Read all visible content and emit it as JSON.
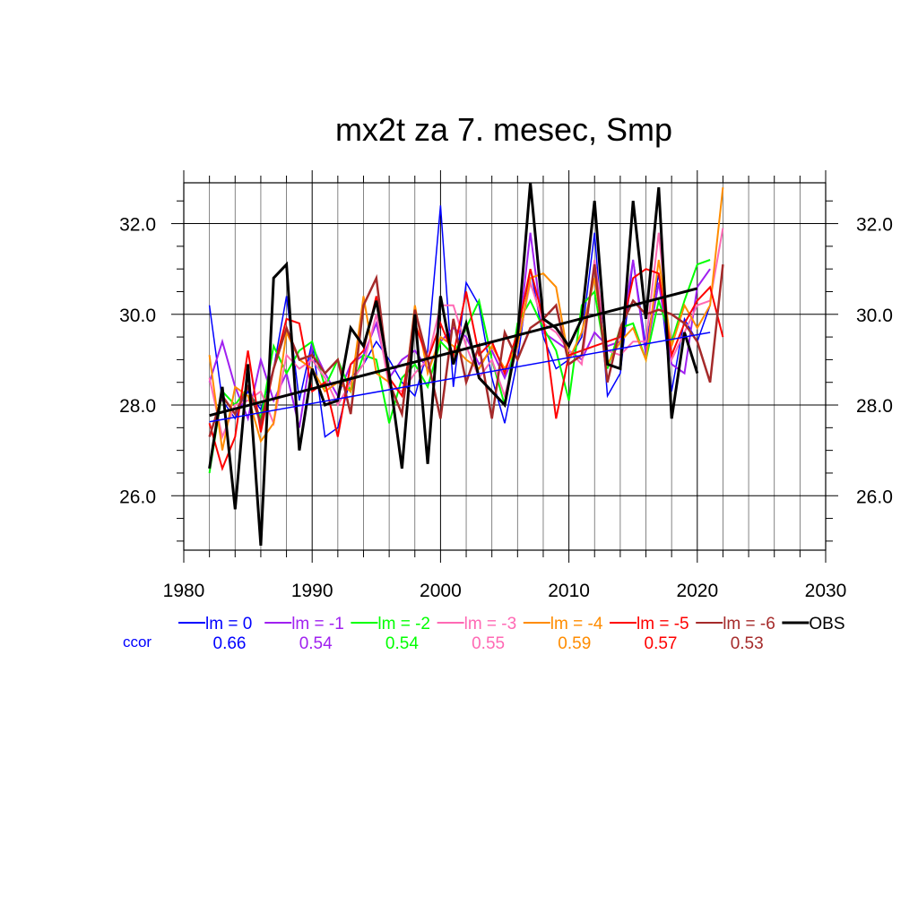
{
  "chart_data": {
    "type": "line",
    "title": "mx2t za 7. mesec, Smp",
    "xlabel": "",
    "ylabel": "",
    "xlim": [
      1980,
      2030
    ],
    "ylim": [
      24.8,
      32.9
    ],
    "x_ticks": [
      1980,
      1990,
      2000,
      2010,
      2020,
      2030
    ],
    "y_ticks": [
      26.0,
      28.0,
      30.0,
      32.0
    ],
    "y_tick_labels": [
      "26.0",
      "28.0",
      "30.0",
      "32.0"
    ],
    "grid": true,
    "legend_position": "below",
    "ccor_label": "ccor",
    "colors": {
      "lm0": "#0000ff",
      "lm1": "#a020f0",
      "lm2": "#00ff00",
      "lm3": "#ff69b4",
      "lm4": "#ff8c00",
      "lm5": "#ff0000",
      "lm6": "#a52a2a",
      "obs": "#000000",
      "ccor": "#0000ff"
    },
    "series": [
      {
        "key": "lm0",
        "name": "lm = 0",
        "ccor": "0.66",
        "color": "#0000ff",
        "width": 1.5,
        "years": [
          1982,
          1983,
          1984,
          1985,
          1986,
          1987,
          1988,
          1989,
          1990,
          1991,
          1992,
          1993,
          1994,
          1995,
          1996,
          1997,
          1998,
          1999,
          2000,
          2001,
          2002,
          2003,
          2004,
          2005,
          2006,
          2007,
          2008,
          2009,
          2010,
          2011,
          2012,
          2013,
          2014,
          2015,
          2016,
          2017,
          2018,
          2019,
          2020,
          2021
        ],
        "values": [
          30.2,
          28.1,
          27.7,
          28.3,
          27.9,
          28.8,
          30.4,
          28.1,
          29.4,
          27.3,
          27.5,
          28.6,
          28.9,
          29.4,
          29.0,
          28.5,
          28.2,
          29.2,
          32.4,
          28.4,
          30.7,
          30.2,
          28.6,
          27.6,
          29.0,
          31.0,
          29.5,
          28.8,
          29.0,
          29.5,
          31.8,
          28.2,
          28.7,
          31.2,
          29.3,
          30.9,
          28.3,
          29.9,
          29.4,
          30.2
        ],
        "trend": [
          27.63,
          29.6
        ]
      },
      {
        "key": "lm1",
        "name": "lm = -1",
        "ccor": "0.54",
        "color": "#a020f0",
        "width": 2,
        "years": [
          1982,
          1983,
          1984,
          1985,
          1986,
          1987,
          1988,
          1989,
          1990,
          1991,
          1992,
          1993,
          1994,
          1995,
          1996,
          1997,
          1998,
          1999,
          2000,
          2001,
          2002,
          2003,
          2004,
          2005,
          2006,
          2007,
          2008,
          2009,
          2010,
          2011,
          2012,
          2013,
          2014,
          2015,
          2016,
          2017,
          2018,
          2019,
          2020,
          2021
        ],
        "values": [
          28.5,
          29.4,
          28.4,
          27.7,
          29.0,
          28.1,
          28.7,
          27.5,
          29.3,
          28.7,
          28.2,
          28.9,
          29.1,
          29.8,
          28.6,
          29.0,
          29.2,
          28.8,
          29.4,
          29.7,
          29.5,
          28.9,
          29.2,
          28.6,
          29.3,
          31.8,
          29.6,
          29.4,
          29.2,
          29.0,
          29.6,
          29.3,
          29.4,
          31.2,
          29.1,
          30.7,
          28.9,
          28.7,
          30.6,
          31.0
        ]
      },
      {
        "key": "lm2",
        "name": "lm = -2",
        "ccor": "0.54",
        "color": "#00ff00",
        "width": 2,
        "years": [
          1982,
          1983,
          1984,
          1985,
          1986,
          1987,
          1988,
          1989,
          1990,
          1991,
          1992,
          1993,
          1994,
          1995,
          1996,
          1997,
          1998,
          1999,
          2000,
          2001,
          2002,
          2003,
          2004,
          2005,
          2006,
          2007,
          2008,
          2009,
          2010,
          2011,
          2012,
          2013,
          2014,
          2015,
          2016,
          2017,
          2018,
          2019,
          2020,
          2021
        ],
        "values": [
          26.5,
          28.3,
          28.0,
          28.4,
          27.7,
          29.3,
          28.7,
          29.2,
          29.4,
          28.4,
          29.0,
          28.3,
          29.1,
          29.0,
          27.6,
          28.6,
          28.9,
          28.4,
          29.4,
          29.1,
          29.7,
          30.3,
          29.0,
          28.0,
          29.8,
          30.3,
          29.7,
          29.2,
          28.1,
          30.2,
          30.5,
          28.8,
          29.7,
          29.8,
          29.0,
          30.3,
          29.4,
          30.3,
          31.1,
          31.2
        ]
      },
      {
        "key": "lm3",
        "name": "lm = -3",
        "ccor": "0.55",
        "color": "#ff69b4",
        "width": 2,
        "years": [
          1982,
          1983,
          1984,
          1985,
          1986,
          1987,
          1988,
          1989,
          1990,
          1991,
          1992,
          1993,
          1994,
          1995,
          1996,
          1997,
          1998,
          1999,
          2000,
          2001,
          2002,
          2003,
          2004,
          2005,
          2006,
          2007,
          2008,
          2009,
          2010,
          2011,
          2012,
          2013,
          2014,
          2015,
          2016,
          2017,
          2018,
          2019,
          2020,
          2021,
          2022
        ],
        "values": [
          28.6,
          27.3,
          28.0,
          28.1,
          28.3,
          27.6,
          29.1,
          28.8,
          29.0,
          28.6,
          28.0,
          28.5,
          28.9,
          30.0,
          28.4,
          28.3,
          28.7,
          29.0,
          30.2,
          30.2,
          29.3,
          28.6,
          29.0,
          28.2,
          29.3,
          30.7,
          29.8,
          29.6,
          29.2,
          28.9,
          31.2,
          29.2,
          29.1,
          29.4,
          29.4,
          31.8,
          29.0,
          29.6,
          30.2,
          30.3,
          31.9
        ]
      },
      {
        "key": "lm4",
        "name": "lm = -4",
        "ccor": "0.59",
        "color": "#ff8c00",
        "width": 2,
        "years": [
          1982,
          1983,
          1984,
          1985,
          1986,
          1987,
          1988,
          1989,
          1990,
          1991,
          1992,
          1993,
          1994,
          1995,
          1996,
          1997,
          1998,
          1999,
          2000,
          2001,
          2002,
          2003,
          2004,
          2005,
          2006,
          2007,
          2008,
          2009,
          2010,
          2011,
          2012,
          2013,
          2014,
          2015,
          2016,
          2017,
          2018,
          2019,
          2020,
          2021,
          2022
        ],
        "values": [
          29.1,
          27.0,
          28.4,
          28.2,
          27.2,
          27.6,
          29.6,
          29.0,
          28.8,
          28.3,
          28.5,
          28.3,
          30.4,
          28.7,
          28.5,
          27.8,
          30.2,
          28.7,
          29.5,
          29.3,
          29.0,
          28.8,
          29.3,
          28.8,
          29.3,
          30.8,
          30.9,
          30.6,
          29.0,
          29.6,
          30.8,
          28.9,
          29.4,
          29.7,
          29.0,
          31.2,
          29.3,
          30.2,
          29.7,
          30.2,
          32.8
        ]
      },
      {
        "key": "lm5",
        "name": "lm = -5",
        "ccor": "0.57",
        "color": "#ff0000",
        "width": 2,
        "years": [
          1982,
          1983,
          1984,
          1985,
          1986,
          1987,
          1988,
          1989,
          1990,
          1991,
          1992,
          1993,
          1994,
          1995,
          1996,
          1997,
          1998,
          1999,
          2000,
          2001,
          2002,
          2003,
          2004,
          2005,
          2006,
          2007,
          2008,
          2009,
          2010,
          2011,
          2012,
          2013,
          2014,
          2015,
          2016,
          2017,
          2018,
          2019,
          2020,
          2021,
          2022
        ],
        "values": [
          27.6,
          26.6,
          27.3,
          29.2,
          27.4,
          28.8,
          29.9,
          29.8,
          28.3,
          28.5,
          27.3,
          28.9,
          29.2,
          30.4,
          28.6,
          28.2,
          29.8,
          29.0,
          29.8,
          29.1,
          30.5,
          29.1,
          29.4,
          28.7,
          29.6,
          31.0,
          29.9,
          27.7,
          29.1,
          29.2,
          29.3,
          29.4,
          29.5,
          30.8,
          31.0,
          30.9,
          29.1,
          29.8,
          30.3,
          30.6,
          29.5
        ]
      },
      {
        "key": "lm6",
        "name": "lm = -6",
        "ccor": "0.53",
        "color": "#a52a2a",
        "width": 2.5,
        "years": [
          1982,
          1983,
          1984,
          1985,
          1986,
          1987,
          1988,
          1989,
          1990,
          1991,
          1992,
          1993,
          1994,
          1995,
          1996,
          1997,
          1998,
          1999,
          2000,
          2001,
          2002,
          2003,
          2004,
          2005,
          2006,
          2007,
          2008,
          2009,
          2010,
          2011,
          2012,
          2013,
          2014,
          2015,
          2016,
          2017,
          2018,
          2019,
          2020,
          2021,
          2022
        ],
        "values": [
          27.3,
          28.2,
          27.8,
          28.4,
          27.6,
          28.8,
          29.7,
          29.0,
          29.1,
          28.7,
          29.0,
          27.8,
          30.2,
          30.8,
          28.5,
          27.8,
          30.1,
          29.0,
          27.7,
          29.9,
          28.5,
          29.3,
          27.7,
          29.6,
          29.0,
          29.7,
          29.9,
          30.2,
          28.9,
          29.1,
          31.1,
          28.5,
          29.7,
          30.3,
          30.0,
          30.1,
          30.0,
          29.8,
          29.4,
          28.5,
          31.1
        ]
      },
      {
        "key": "obs",
        "name": "OBS",
        "ccor": "",
        "color": "#000000",
        "width": 3,
        "years": [
          1982,
          1983,
          1984,
          1985,
          1986,
          1987,
          1988,
          1989,
          1990,
          1991,
          1992,
          1993,
          1994,
          1995,
          1996,
          1997,
          1998,
          1999,
          2000,
          2001,
          2002,
          2003,
          2004,
          2005,
          2006,
          2007,
          2008,
          2009,
          2010,
          2011,
          2012,
          2013,
          2014,
          2015,
          2016,
          2017,
          2018,
          2019,
          2020
        ],
        "values": [
          26.6,
          28.4,
          25.7,
          28.9,
          24.9,
          30.8,
          31.1,
          27.0,
          28.8,
          28.0,
          28.1,
          29.7,
          29.3,
          30.3,
          28.7,
          26.6,
          30.0,
          26.7,
          30.4,
          28.9,
          29.8,
          28.6,
          28.3,
          28.0,
          29.5,
          32.9,
          29.9,
          29.7,
          29.3,
          29.9,
          32.5,
          28.9,
          28.8,
          32.5,
          29.9,
          32.8,
          27.7,
          29.6,
          28.7
        ],
        "trend": [
          27.77,
          30.57
        ]
      }
    ]
  }
}
